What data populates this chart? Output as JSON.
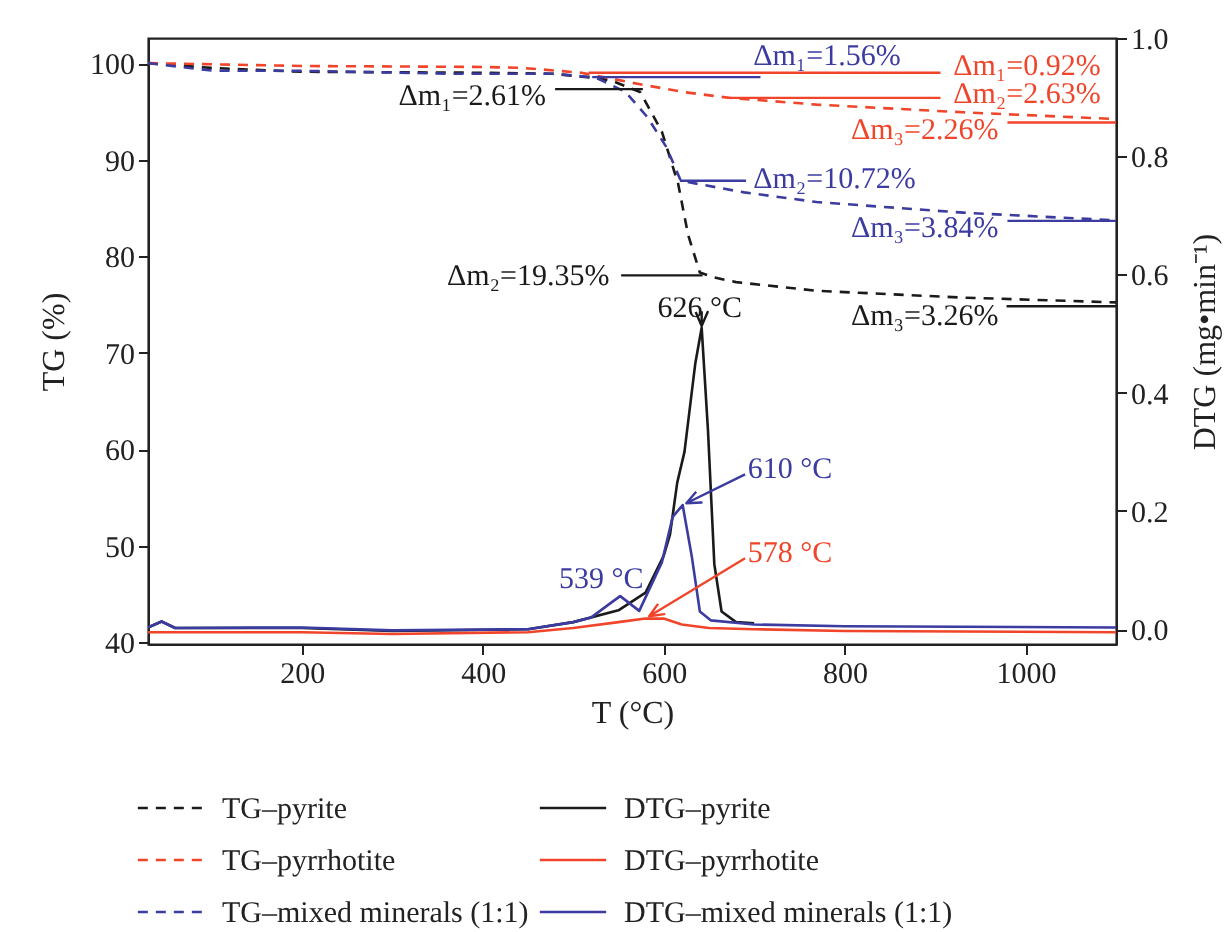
{
  "chart_data": {
    "type": "line",
    "xlabel": "T (°C)",
    "ylabel": "TG (%)",
    "y2label": "DTG (mg•min⁻¹)",
    "xlim": [
      30,
      1100
    ],
    "xticks": [
      200,
      400,
      600,
      800,
      1000
    ],
    "ylim": [
      39.8,
      102.6
    ],
    "yticks": [
      40,
      50,
      60,
      70,
      80,
      90,
      100
    ],
    "y2lim": [
      -0.025,
      1.0
    ],
    "y2ticks": [
      {
        "value": 0,
        "label": "0.0"
      },
      {
        "value": 0.2,
        "label": "0.2"
      },
      {
        "value": 0.4,
        "label": "0.4"
      },
      {
        "value": 0.6,
        "label": "0.6"
      },
      {
        "value": 0.8,
        "label": "0.8"
      },
      {
        "value": 1,
        "label": "1.0"
      }
    ],
    "legend": "bottom",
    "series": [
      {
        "name": "TG–pyrite",
        "color": "#1a1a1a",
        "line_style": "dashed",
        "x": [
          30,
          100,
          200,
          400,
          477,
          520,
          542,
          574,
          598,
          616,
          627,
          640,
          655,
          680,
          770,
          930,
          1100
        ],
        "values": [
          100,
          99.5,
          99.1,
          99.0,
          98.9,
          98.5,
          98.2,
          97.0,
          92.9,
          87.5,
          82.2,
          78.3,
          77.8,
          77.3,
          76.4,
          75.7,
          75.2
        ]
      },
      {
        "name": "DTG–pyrite",
        "color": "#1a1a1a",
        "line_style": "solid",
        "axis": "y2",
        "x": [
          30,
          45,
          60,
          200,
          300,
          450,
          500,
          550,
          580,
          600,
          607,
          615,
          623,
          635,
          642,
          649,
          656,
          664,
          680,
          700
        ],
        "values": [
          0.003,
          0.013,
          0.002,
          0.002,
          -0.003,
          0.0,
          0.012,
          0.032,
          0.062,
          0.124,
          0.16,
          0.248,
          0.3,
          0.45,
          0.51,
          0.336,
          0.11,
          0.03,
          0.012,
          0.01
        ]
      },
      {
        "name": "TG–pyrrhotite",
        "color": "#f0452a",
        "line_style": "dashed",
        "x": [
          30,
          200,
          400,
          444,
          509,
          574,
          622,
          672,
          769,
          931,
          1100
        ],
        "values": [
          100,
          99.7,
          99.6,
          99.5,
          99.0,
          97.8,
          97.0,
          96.4,
          95.7,
          94.9,
          94.2
        ]
      },
      {
        "name": "DTG–pyrrhotite",
        "color": "#f0452a",
        "line_style": "solid",
        "axis": "y2",
        "x": [
          30,
          200,
          300,
          450,
          500,
          550,
          580,
          600,
          620,
          650,
          700,
          800,
          1100
        ],
        "values": [
          -0.005,
          -0.005,
          -0.008,
          -0.005,
          0.002,
          0.012,
          0.018,
          0.018,
          0.008,
          0.002,
          0.0,
          -0.003,
          -0.005
        ]
      },
      {
        "name": "TG–mixed minerals (1:1)",
        "color": "#3b3ba0",
        "line_style": "dashed",
        "x": [
          30,
          103,
          200,
          364,
          477,
          525,
          558,
          582,
          603,
          619,
          689,
          769,
          931,
          1100
        ],
        "values": [
          100,
          99.2,
          99.2,
          98.9,
          98.9,
          98.5,
          97.0,
          94.4,
          91.3,
          87.8,
          86.6,
          85.6,
          84.5,
          83.7
        ]
      },
      {
        "name": "DTG–mixed minerals (1:1)",
        "color": "#3b3ba0",
        "line_style": "solid",
        "axis": "y2",
        "x": [
          30,
          45,
          60,
          200,
          300,
          450,
          500,
          520,
          542,
          552,
          573,
          598,
          610,
          621,
          631,
          640,
          652,
          700,
          800,
          1100
        ],
        "values": [
          0.003,
          0.013,
          0.002,
          0.003,
          -0.002,
          0.0,
          0.012,
          0.02,
          0.045,
          0.056,
          0.031,
          0.113,
          0.19,
          0.21,
          0.124,
          0.03,
          0.015,
          0.008,
          0.005,
          0.003
        ]
      }
    ],
    "annotations": [
      "Δm₁=2.61%",
      "Δm₂=19.35%",
      "Δm₃=3.26%",
      {
        "text": "Δm₁=1.56%",
        "x": 521,
        "y": 98.55
      },
      {
        "text": "Δm₂=10.72%",
        "x": 618,
        "y": 87.8
      },
      "Δm₃=3.84%",
      {
        "text": "Δm₁=0.92%",
        "x": 517,
        "y": 99.0
      },
      {
        "text": "Δm₂=2.63%",
        "x": 670,
        "y": 96.4
      },
      "Δm₃=2.26%",
      "626 °C",
      "610 °C",
      "578 °C",
      "539 °C"
    ]
  }
}
